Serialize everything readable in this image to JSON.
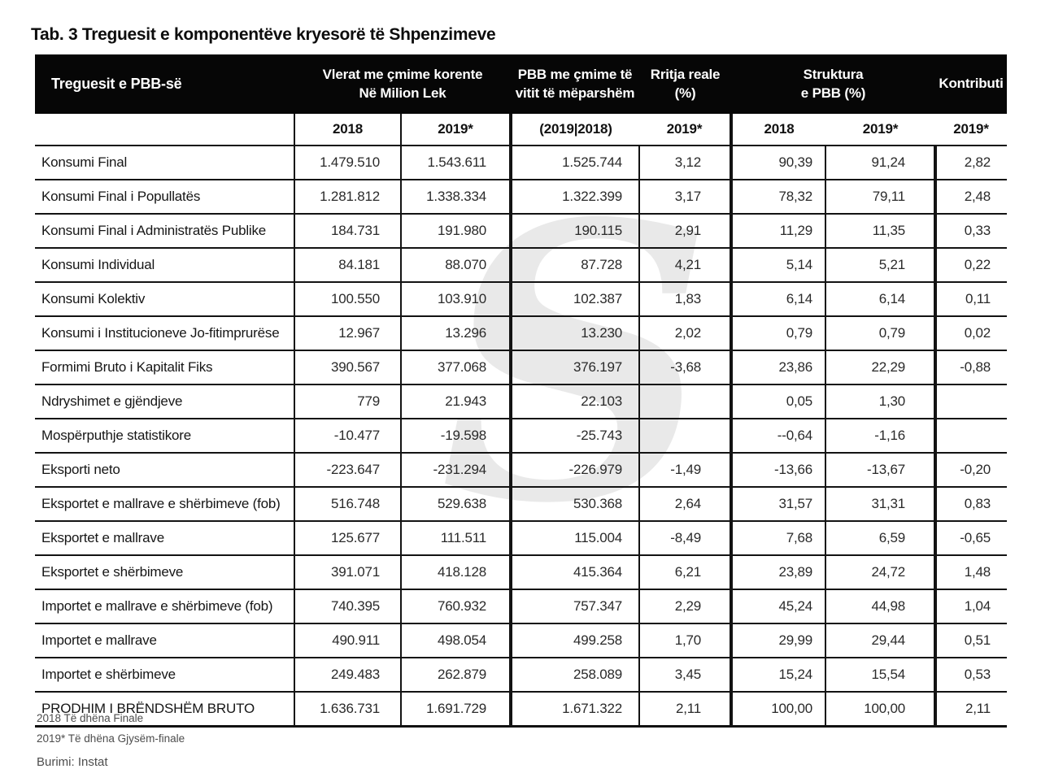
{
  "title": "Tab. 3 Treguesit e komponentëve kryesorë të Shpenzimeve",
  "colors": {
    "header_bg": "#060606",
    "header_text": "#ffffff",
    "border": "#131313",
    "watermark": "#e9e9e9",
    "footnote_text": "#4d4d4d"
  },
  "watermark": {
    "glyph": "S"
  },
  "table": {
    "header_groups": [
      {
        "label": "Treguesit e PBB-së"
      },
      {
        "label": "Vlerat me çmime korente\nNë Milion Lek"
      },
      {
        "label": "PBB me çmime të\nvitit të mëparshëm"
      },
      {
        "label": "Rritja reale\n(%)"
      },
      {
        "label": "Struktura\ne PBB (%)"
      },
      {
        "label": "Kontributi"
      }
    ],
    "subheaders": [
      "2018",
      "2019*",
      "(2019|2018)",
      "2019*",
      "2018",
      "2019*",
      "2019*"
    ],
    "rows": [
      {
        "label": "Konsumi Final",
        "values": [
          "1.479.510",
          "1.543.611",
          "1.525.744",
          "3,12",
          "90,39",
          "91,24",
          "2,82"
        ]
      },
      {
        "label": "Konsumi Final i Popullatës",
        "values": [
          "1.281.812",
          "1.338.334",
          "1.322.399",
          "3,17",
          "78,32",
          "79,11",
          "2,48"
        ]
      },
      {
        "label": "Konsumi Final i Administratës Publike",
        "values": [
          "184.731",
          "191.980",
          "190.115",
          "2,91",
          "11,29",
          "11,35",
          "0,33"
        ]
      },
      {
        "label": "Konsumi Individual",
        "values": [
          "84.181",
          "88.070",
          "87.728",
          "4,21",
          "5,14",
          "5,21",
          "0,22"
        ]
      },
      {
        "label": "Konsumi Kolektiv",
        "values": [
          "100.550",
          "103.910",
          "102.387",
          "1,83",
          "6,14",
          "6,14",
          "0,11"
        ]
      },
      {
        "label": "Konsumi i Institucioneve Jo-fitimprurëse",
        "values": [
          "12.967",
          "13.296",
          "13.230",
          "2,02",
          "0,79",
          "0,79",
          "0,02"
        ]
      },
      {
        "label": "Formimi Bruto i Kapitalit Fiks",
        "values": [
          "390.567",
          "377.068",
          "376.197",
          "-3,68",
          "23,86",
          "22,29",
          "-0,88"
        ]
      },
      {
        "label": "Ndryshimet e gjëndjeve",
        "values": [
          "779",
          "21.943",
          "22.103",
          "",
          "0,05",
          "1,30",
          ""
        ]
      },
      {
        "label": "Mospërputhje statistikore",
        "values": [
          "-10.477",
          "-19.598",
          "-25.743",
          "",
          "--0,64",
          "-1,16",
          ""
        ]
      },
      {
        "label": "Eksporti neto",
        "values": [
          "-223.647",
          "-231.294",
          "-226.979",
          "-1,49",
          "-13,66",
          "-13,67",
          "-0,20"
        ]
      },
      {
        "label": "Eksportet e mallrave e shërbimeve (fob)",
        "values": [
          "516.748",
          "529.638",
          "530.368",
          "2,64",
          "31,57",
          "31,31",
          "0,83"
        ]
      },
      {
        "label": "Eksportet e mallrave",
        "values": [
          "125.677",
          "111.511",
          "115.004",
          "-8,49",
          "7,68",
          "6,59",
          "-0,65"
        ]
      },
      {
        "label": "Eksportet e shërbimeve",
        "values": [
          "391.071",
          "418.128",
          "415.364",
          "6,21",
          "23,89",
          "24,72",
          "1,48"
        ]
      },
      {
        "label": "Importet e mallrave e shërbimeve (fob)",
        "values": [
          "740.395",
          "760.932",
          "757.347",
          "2,29",
          "45,24",
          "44,98",
          "1,04"
        ]
      },
      {
        "label": "Importet e mallrave",
        "values": [
          "490.911",
          "498.054",
          "499.258",
          "1,70",
          "29,99",
          "29,44",
          "0,51"
        ]
      },
      {
        "label": "Importet e shërbimeve",
        "values": [
          "249.483",
          "262.879",
          "258.089",
          "3,45",
          "15,24",
          "15,54",
          "0,53"
        ]
      },
      {
        "label": "PRODHIM I BRËNDSHËM BRUTO",
        "values": [
          "1.636.731",
          "1.691.729",
          "1.671.322",
          "2,11",
          "100,00",
          "100,00",
          "2,11"
        ]
      }
    ]
  },
  "footnotes": [
    "2018 Të dhëna Finale",
    "2019* Të dhëna Gjysëm-finale"
  ],
  "source": "Burimi: Instat"
}
